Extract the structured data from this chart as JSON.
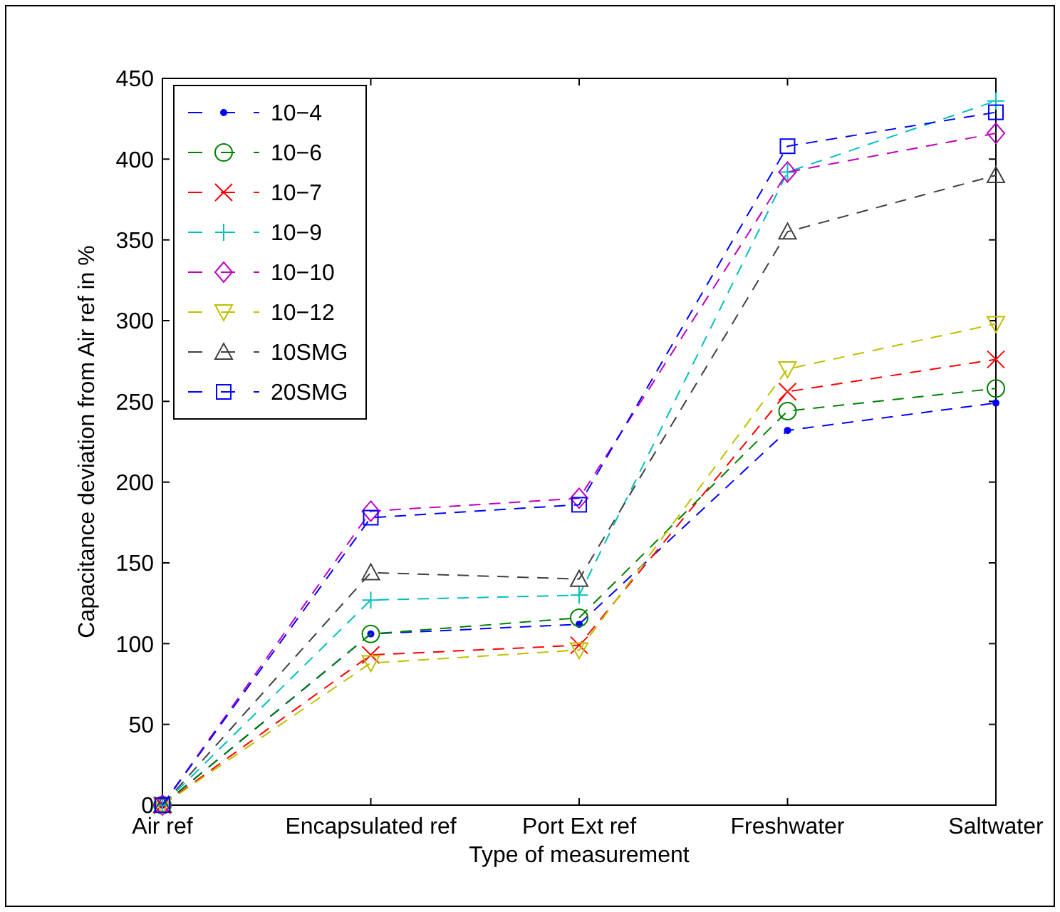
{
  "chart_data": {
    "type": "line",
    "xlabel": "Type of measurement",
    "ylabel": "Capacitance deviation from Air ref in %",
    "categories": [
      "Air ref",
      "Encapsulated ref",
      "Port Ext ref",
      "Freshwater",
      "Saltwater"
    ],
    "ylim": [
      0,
      450
    ],
    "yticks": [
      0,
      50,
      100,
      150,
      200,
      250,
      300,
      350,
      400,
      450
    ],
    "grid": false,
    "legend": "top left",
    "line_style": "dashed",
    "series": [
      {
        "name": "10−4",
        "color": "#0000ff",
        "marker": "point",
        "values": [
          0,
          106,
          112,
          232,
          249
        ]
      },
      {
        "name": "10−6",
        "color": "#008000",
        "marker": "circle",
        "values": [
          0,
          106,
          116,
          244,
          258
        ]
      },
      {
        "name": "10−7",
        "color": "#ff0000",
        "marker": "cross",
        "values": [
          0,
          93,
          99,
          256,
          276
        ]
      },
      {
        "name": "10−9",
        "color": "#00bfbf",
        "marker": "plus",
        "values": [
          0,
          127,
          130,
          392,
          436
        ]
      },
      {
        "name": "10−10",
        "color": "#bf00bf",
        "marker": "diamond",
        "values": [
          0,
          182,
          190,
          392,
          416
        ]
      },
      {
        "name": "10−12",
        "color": "#bfbf00",
        "marker": "triangle-down",
        "values": [
          0,
          88,
          96,
          270,
          298
        ]
      },
      {
        "name": "10SMG",
        "color": "#404040",
        "marker": "triangle",
        "values": [
          0,
          144,
          140,
          355,
          390
        ]
      },
      {
        "name": "20SMG",
        "color": "#0000ff",
        "marker": "square",
        "values": [
          0,
          178,
          186,
          408,
          429
        ]
      }
    ]
  }
}
